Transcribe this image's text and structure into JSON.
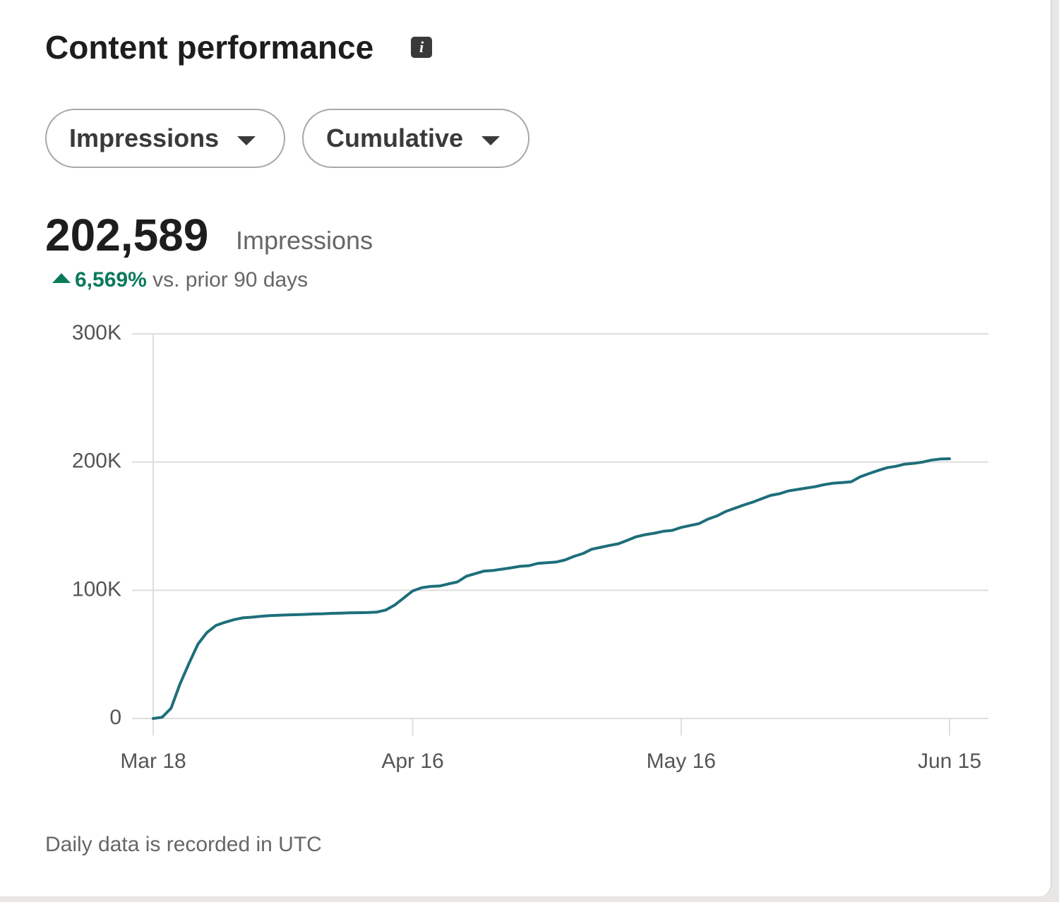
{
  "header": {
    "title": "Content performance"
  },
  "filters": [
    "Impressions",
    "Cumulative"
  ],
  "summary": {
    "value": "202,589",
    "unit": "Impressions",
    "change": "6,569%",
    "comparison": "vs. prior 90 days"
  },
  "chart_data": {
    "type": "line",
    "categories": [
      "Mar 18",
      null,
      null,
      null,
      null,
      null,
      null,
      null,
      null,
      null,
      null,
      null,
      null,
      null,
      null,
      null,
      null,
      null,
      null,
      null,
      null,
      null,
      null,
      null,
      null,
      null,
      null,
      null,
      null,
      "Apr 16",
      null,
      null,
      null,
      null,
      null,
      null,
      null,
      null,
      null,
      null,
      null,
      null,
      null,
      null,
      null,
      null,
      null,
      null,
      null,
      null,
      null,
      null,
      null,
      null,
      null,
      null,
      null,
      null,
      null,
      "May 16",
      null,
      null,
      null,
      null,
      null,
      null,
      null,
      null,
      null,
      null,
      null,
      null,
      null,
      null,
      null,
      null,
      null,
      null,
      null,
      null,
      null,
      null,
      null,
      null,
      null,
      null,
      null,
      null,
      null,
      "Jun 15"
    ],
    "values": [
      0,
      1000,
      8000,
      27000,
      43000,
      58000,
      67000,
      72500,
      75000,
      77000,
      78500,
      79000,
      79700,
      80200,
      80500,
      80800,
      81000,
      81200,
      81500,
      81700,
      82000,
      82200,
      82400,
      82500,
      82600,
      83000,
      84600,
      88500,
      94000,
      99500,
      102000,
      103000,
      103300,
      105000,
      106500,
      111000,
      113000,
      115000,
      115500,
      116500,
      117500,
      118700,
      119200,
      121000,
      121500,
      122000,
      123600,
      126400,
      128600,
      132000,
      133500,
      135000,
      136300,
      139000,
      141800,
      143400,
      144500,
      146000,
      146700,
      149000,
      150500,
      152000,
      155500,
      158000,
      161500,
      164000,
      166500,
      168700,
      171400,
      174000,
      175300,
      177500,
      178600,
      179700,
      180800,
      182400,
      183500,
      184000,
      184600,
      188500,
      191000,
      193400,
      195600,
      196700,
      198400,
      199000,
      200000,
      201600,
      202400,
      202589
    ],
    "color": "#1d6f7a",
    "ylim": [
      0,
      300000
    ],
    "yticks": [
      0,
      {
        "value": 100000,
        "label": "100K"
      },
      {
        "value": 200000,
        "label": "200K"
      },
      {
        "value": 300000,
        "label": "300K"
      }
    ],
    "grid": true
  },
  "footer": "Daily data is recorded in UTC"
}
